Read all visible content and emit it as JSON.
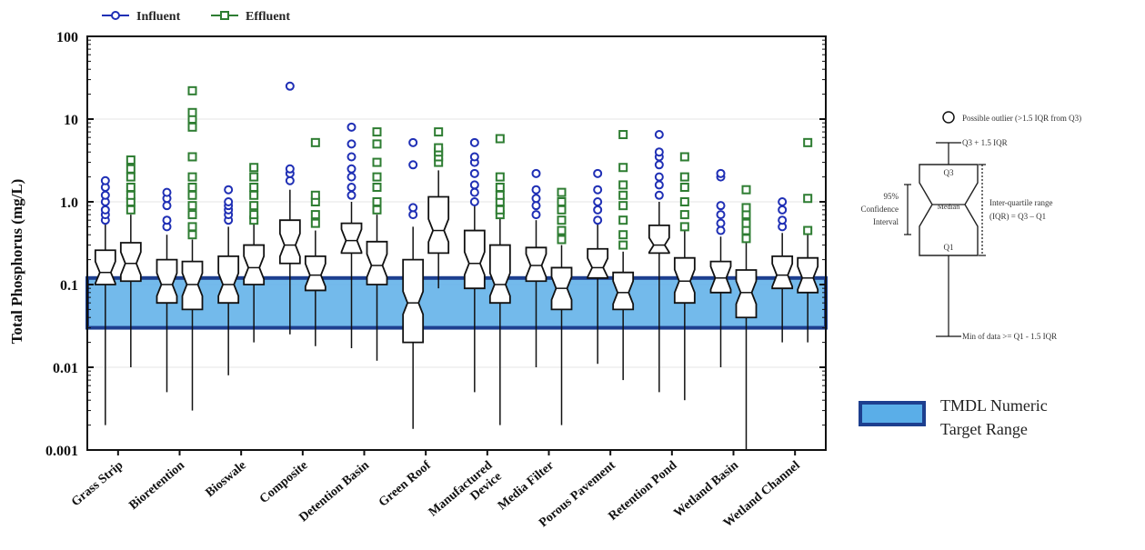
{
  "chart_data": {
    "type": "boxplot",
    "ylabel": "Total Phosphorus (mg/L)",
    "yscale": "log",
    "ylim": [
      0.001,
      100
    ],
    "yticks": [
      "0.001",
      "0.01",
      "0.1",
      "1.0",
      "10",
      "100"
    ],
    "categories": [
      "Grass Strip",
      "Bioretention",
      "Bioswale",
      "Composite",
      "Detention Basin",
      "Green Roof",
      "Manufactured Device",
      "Media Filter",
      "Porous Pavement",
      "Retention Pond",
      "Wetland Basin",
      "Wetland Channel"
    ],
    "legend": [
      {
        "name": "Influent",
        "color": "#1f2fb5"
      },
      {
        "name": "Effluent",
        "color": "#2e7d32"
      }
    ],
    "target_band": {
      "label": "TMDL Numeric Target Range",
      "low": 0.03,
      "high": 0.12,
      "fill": "#5aaee8",
      "stroke": "#1d3f8f"
    },
    "series": [
      {
        "name": "Influent",
        "boxes": [
          {
            "min": 0.002,
            "q1": 0.1,
            "median": 0.14,
            "q3": 0.26,
            "max": 0.55,
            "outliers": [
              0.6,
              0.7,
              0.8,
              1.0,
              1.2,
              1.5,
              1.8
            ]
          },
          {
            "min": 0.005,
            "q1": 0.06,
            "median": 0.1,
            "q3": 0.2,
            "max": 0.4,
            "outliers": [
              0.5,
              0.6,
              0.9,
              1.1,
              1.3
            ]
          },
          {
            "min": 0.008,
            "q1": 0.06,
            "median": 0.1,
            "q3": 0.22,
            "max": 0.5,
            "outliers": [
              0.6,
              0.7,
              0.8,
              0.9,
              1.0,
              1.4
            ]
          },
          {
            "min": 0.025,
            "q1": 0.18,
            "median": 0.3,
            "q3": 0.6,
            "max": 1.4,
            "outliers": [
              1.8,
              2.2,
              2.5,
              25
            ]
          },
          {
            "min": 0.017,
            "q1": 0.24,
            "median": 0.34,
            "q3": 0.55,
            "max": 1.0,
            "outliers": [
              1.2,
              1.5,
              2.0,
              2.5,
              3.5,
              5.0,
              8.0
            ]
          },
          {
            "min": 0.0018,
            "q1": 0.02,
            "median": 0.06,
            "q3": 0.2,
            "max": 0.5,
            "outliers": [
              0.7,
              0.85,
              2.8,
              5.2
            ]
          },
          {
            "min": 0.005,
            "q1": 0.09,
            "median": 0.18,
            "q3": 0.45,
            "max": 0.9,
            "outliers": [
              1.0,
              1.3,
              1.6,
              2.2,
              3.0,
              3.5,
              5.2
            ]
          },
          {
            "min": 0.01,
            "q1": 0.11,
            "median": 0.17,
            "q3": 0.28,
            "max": 0.6,
            "outliers": [
              0.7,
              0.9,
              1.1,
              1.4,
              2.2
            ]
          },
          {
            "min": 0.011,
            "q1": 0.12,
            "median": 0.16,
            "q3": 0.27,
            "max": 0.55,
            "outliers": [
              0.6,
              0.8,
              1.0,
              1.4,
              2.2
            ]
          },
          {
            "min": 0.005,
            "q1": 0.24,
            "median": 0.3,
            "q3": 0.52,
            "max": 1.0,
            "outliers": [
              1.2,
              1.6,
              2.0,
              2.8,
              3.5,
              4.0,
              6.5
            ]
          },
          {
            "min": 0.01,
            "q1": 0.08,
            "median": 0.12,
            "q3": 0.19,
            "max": 0.38,
            "outliers": [
              0.45,
              0.55,
              0.7,
              0.9,
              2.0,
              2.2
            ]
          },
          {
            "min": 0.02,
            "q1": 0.09,
            "median": 0.13,
            "q3": 0.22,
            "max": 0.42,
            "outliers": [
              0.5,
              0.6,
              0.8,
              1.0
            ]
          }
        ]
      },
      {
        "name": "Effluent",
        "boxes": [
          {
            "min": 0.01,
            "q1": 0.11,
            "median": 0.18,
            "q3": 0.32,
            "max": 0.7,
            "outliers": [
              0.8,
              1.0,
              1.2,
              1.5,
              2.0,
              2.5,
              3.2
            ]
          },
          {
            "min": 0.003,
            "q1": 0.05,
            "median": 0.1,
            "q3": 0.19,
            "max": 0.35,
            "outliers": [
              0.4,
              0.5,
              0.7,
              0.9,
              1.2,
              1.5,
              2.0,
              3.5,
              8,
              10,
              12,
              22
            ]
          },
          {
            "min": 0.02,
            "q1": 0.1,
            "median": 0.16,
            "q3": 0.3,
            "max": 0.55,
            "outliers": [
              0.6,
              0.7,
              0.9,
              1.2,
              1.5,
              2.0,
              2.6
            ]
          },
          {
            "min": 0.018,
            "q1": 0.085,
            "median": 0.13,
            "q3": 0.22,
            "max": 0.45,
            "outliers": [
              0.55,
              0.7,
              1.0,
              1.2,
              5.2
            ]
          },
          {
            "min": 0.012,
            "q1": 0.1,
            "median": 0.17,
            "q3": 0.33,
            "max": 0.7,
            "outliers": [
              0.8,
              1.0,
              1.5,
              2.0,
              3.0,
              5.0,
              7.0
            ]
          },
          {
            "min": 0.09,
            "q1": 0.24,
            "median": 0.45,
            "q3": 1.15,
            "max": 2.4,
            "outliers": [
              3.0,
              3.5,
              4.0,
              4.5,
              7.0
            ]
          },
          {
            "min": 0.002,
            "q1": 0.06,
            "median": 0.1,
            "q3": 0.3,
            "max": 0.65,
            "outliers": [
              0.7,
              0.8,
              1.0,
              1.2,
              1.5,
              2.0,
              5.8
            ]
          },
          {
            "min": 0.002,
            "q1": 0.05,
            "median": 0.09,
            "q3": 0.16,
            "max": 0.3,
            "outliers": [
              0.35,
              0.45,
              0.6,
              0.8,
              1.0,
              1.3
            ]
          },
          {
            "min": 0.007,
            "q1": 0.05,
            "median": 0.08,
            "q3": 0.14,
            "max": 0.25,
            "outliers": [
              0.3,
              0.4,
              0.6,
              0.9,
              1.2,
              1.6,
              2.6,
              6.5
            ]
          },
          {
            "min": 0.004,
            "q1": 0.06,
            "median": 0.11,
            "q3": 0.21,
            "max": 0.45,
            "outliers": [
              0.5,
              0.7,
              1.0,
              1.5,
              2.0,
              3.5
            ]
          },
          {
            "min": 0.001,
            "q1": 0.04,
            "median": 0.08,
            "q3": 0.15,
            "max": 0.32,
            "outliers": [
              0.36,
              0.45,
              0.55,
              0.7,
              0.85,
              1.4
            ]
          },
          {
            "min": 0.02,
            "q1": 0.08,
            "median": 0.12,
            "q3": 0.21,
            "max": 0.4,
            "outliers": [
              0.45,
              1.1,
              5.2
            ]
          }
        ]
      }
    ]
  },
  "legend_box": {
    "title": "TMDL Numeric Target Range",
    "line1": "TMDL Numeric",
    "line2": "Target Range"
  },
  "key_diagram": {
    "outlier": "Possible outlier (>1.5 IQR from Q3)",
    "upper": "Q3 + 1.5 IQR",
    "q3": "Q3",
    "median": "Median",
    "q1": "Q1",
    "ci_line1": "95%",
    "ci_line2": "Confidence",
    "ci_line3": "Interval",
    "iqr_line1": "Inter-quartile range",
    "iqr_line2": "(IQR) = Q3 – Q1",
    "lower": "Min of data >= Q1 - 1.5 IQR"
  }
}
